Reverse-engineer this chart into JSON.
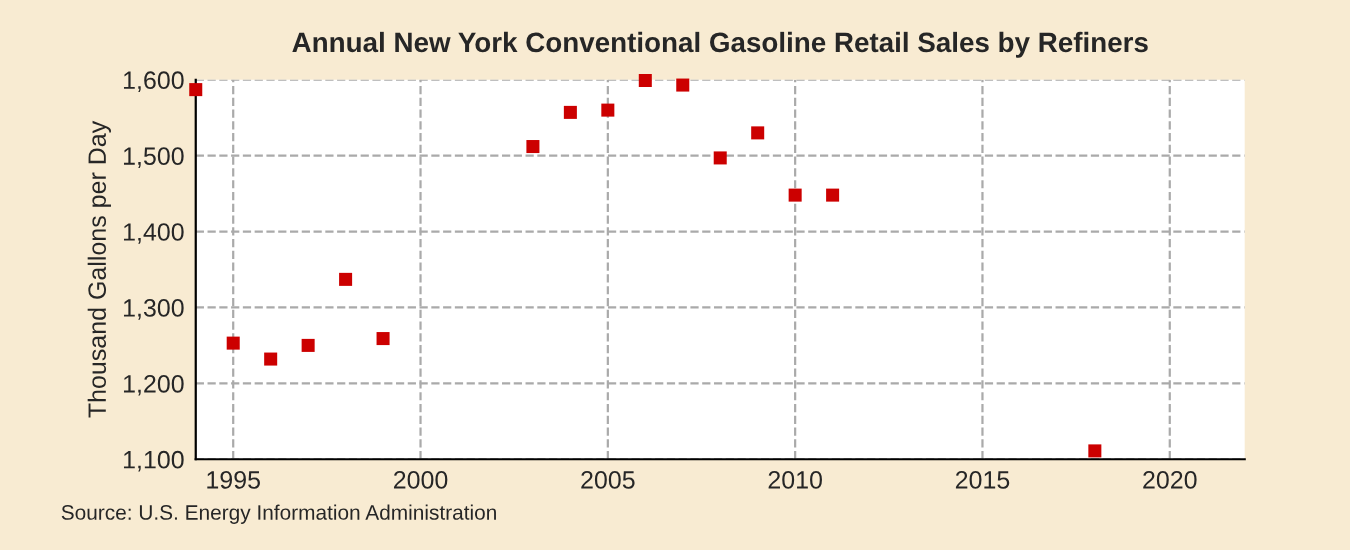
{
  "chart_data": {
    "type": "scatter",
    "title": "Annual New York Conventional Gasoline Retail Sales by Refiners",
    "ylabel": "Thousand Gallons per Day",
    "annotations": [
      "Source: U.S. Energy Information Administration"
    ],
    "x": [
      1994,
      1995,
      1996,
      1997,
      1998,
      1999,
      2003,
      2004,
      2005,
      2006,
      2007,
      2008,
      2009,
      2010,
      2011,
      2018
    ],
    "series": [
      {
        "color": "#cc0000",
        "values": [
          1587,
          1253,
          1232,
          1250,
          1337,
          1259,
          1512,
          1557,
          1560,
          1599,
          1593,
          1497,
          1530,
          1448,
          1448,
          1111
        ]
      }
    ],
    "xlim": [
      1994,
      2022
    ],
    "xticks": [
      1995,
      2000,
      2005,
      2010,
      2015,
      2020
    ],
    "ylim": [
      1100,
      1600
    ],
    "yticks": [
      {
        "value": 1100,
        "label": "1,100"
      },
      {
        "value": 1200,
        "label": "1,200"
      },
      {
        "value": 1300,
        "label": "1,300"
      },
      {
        "value": 1400,
        "label": "1,400"
      },
      {
        "value": 1500,
        "label": "1,500"
      },
      {
        "value": 1600,
        "label": "1,600"
      }
    ],
    "grid": true,
    "marker": "square"
  }
}
